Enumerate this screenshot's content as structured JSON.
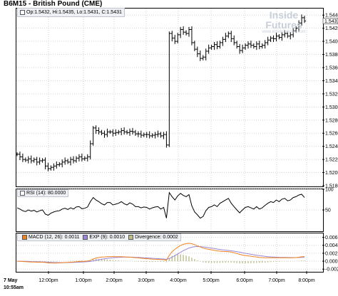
{
  "chart_title": "B6M15 - British Pound (CME)",
  "ohlc_readout": "Op:1.5432, Hi:1.5435, Lo:1.5431, C:1.5431",
  "watermark": {
    "brand": "Inside Futures",
    "url": "www.insidefutures.com"
  },
  "chart_data": [
    {
      "type": "ohlc",
      "title": "B6M15 - British Pound (CME)",
      "x_categories": [
        "7 May 10:55am",
        "12:00pm",
        "1:00pm",
        "2:00pm",
        "3:00pm",
        "4:00pm",
        "5:00pm",
        "6:00pm",
        "7:00pm",
        "8:00pm"
      ],
      "ylim": [
        1.518,
        1.545
      ],
      "y_ticks": [
        "1.5180",
        "1.5200",
        "1.5220",
        "1.5240",
        "1.5260",
        "1.5280",
        "1.5300",
        "1.5320",
        "1.5340",
        "1.5360",
        "1.5380",
        "1.5400",
        "1.5420",
        "1.5440"
      ],
      "last_price_label": "1.5431",
      "close_series": [
        1.5228,
        1.5224,
        1.522,
        1.5219,
        1.5221,
        1.5218,
        1.522,
        1.5216,
        1.5218,
        1.5219,
        1.521,
        1.5206,
        1.5208,
        1.521,
        1.5212,
        1.5213,
        1.5216,
        1.5218,
        1.5216,
        1.522,
        1.5218,
        1.5222,
        1.5224,
        1.5221,
        1.5222,
        1.5224,
        1.5244,
        1.5268,
        1.5264,
        1.5262,
        1.526,
        1.5258,
        1.5262,
        1.5262,
        1.526,
        1.5261,
        1.5262,
        1.5264,
        1.5262,
        1.5261,
        1.5263,
        1.5262,
        1.5259,
        1.5259,
        1.5257,
        1.5258,
        1.5258,
        1.5256,
        1.5257,
        1.5258,
        1.5259,
        1.5256,
        1.5258,
        1.5242,
        1.5412,
        1.5405,
        1.54,
        1.541,
        1.5418,
        1.5414,
        1.5412,
        1.5418,
        1.5398,
        1.5388,
        1.5381,
        1.5374,
        1.5376,
        1.5385,
        1.539,
        1.5392,
        1.5395,
        1.5392,
        1.5398,
        1.5403,
        1.5408,
        1.5412,
        1.5404,
        1.5398,
        1.5392,
        1.5386,
        1.539,
        1.5394,
        1.5396,
        1.5394,
        1.5392,
        1.5396,
        1.5392,
        1.5394,
        1.5398,
        1.5402,
        1.5405,
        1.5404,
        1.5408,
        1.5406,
        1.541,
        1.5412,
        1.5408,
        1.541,
        1.5416,
        1.542,
        1.5428,
        1.5436,
        1.5431
      ],
      "grid": true
    },
    {
      "type": "line",
      "title": "RSI (14): 80.0000",
      "ylim": [
        0,
        100
      ],
      "y_ticks": [
        "50",
        "100"
      ],
      "values": [
        55,
        52,
        48,
        46,
        50,
        47,
        49,
        45,
        48,
        50,
        40,
        37,
        42,
        45,
        47,
        48,
        52,
        54,
        51,
        55,
        52,
        57,
        58,
        53,
        54,
        57,
        70,
        80,
        74,
        70,
        65,
        62,
        68,
        68,
        62,
        64,
        66,
        70,
        65,
        62,
        67,
        64,
        58,
        58,
        55,
        57,
        56,
        52,
        55,
        57,
        58,
        52,
        56,
        30,
        92,
        82,
        74,
        84,
        90,
        85,
        82,
        87,
        60,
        45,
        38,
        30,
        34,
        48,
        56,
        58,
        62,
        58,
        66,
        70,
        74,
        78,
        66,
        58,
        50,
        43,
        50,
        56,
        58,
        55,
        52,
        58,
        52,
        55,
        61,
        66,
        70,
        68,
        74,
        70,
        76,
        78,
        72,
        74,
        80,
        82,
        86,
        88,
        80
      ],
      "grid": true
    },
    {
      "type": "line",
      "title": "MACD",
      "ylim": [
        -0.0025,
        0.007
      ],
      "y_ticks": [
        "-0.002",
        "0.000",
        "0.002",
        "0.004",
        "0.006"
      ],
      "series": [
        {
          "name": "MACD (12, 26)",
          "value_label": "0.0011",
          "color": "#f0821e"
        },
        {
          "name": "EXP (9)",
          "value_label": "0.0010",
          "color": "#9a86d8"
        },
        {
          "name": "Divergence",
          "value_label": "0.0002",
          "color": "#bdbd8c"
        }
      ],
      "grid": true
    }
  ],
  "colors": {
    "price_bars": "#000000",
    "rsi_line": "#000000",
    "macd": "#f0821e",
    "signal": "#9a86d8",
    "divergence": "#bdbd8c",
    "grid": "#d3d3d3"
  }
}
